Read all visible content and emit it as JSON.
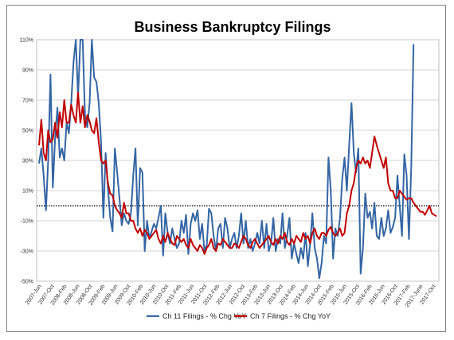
{
  "chart_data": {
    "type": "line",
    "title": "Business Bankruptcy Filings",
    "ylim": [
      -50,
      110
    ],
    "yticks": [
      -50,
      -30,
      -10,
      10,
      30,
      50,
      70,
      90,
      110
    ],
    "ytick_labels": [
      "-50%",
      "-30%",
      "-10%",
      "10%",
      "30%",
      "50%",
      "70%",
      "90%",
      "110%"
    ],
    "x_labels": [
      "2007-Jun",
      "2007-Oct",
      "2008-Feb",
      "2008-Jun",
      "2008-Oct",
      "2009-Feb",
      "2009-Jun",
      "2009-Oct",
      "2010-Feb",
      "2010-Jun",
      "2010-Oct",
      "2011-Feb",
      "2011-Jun",
      "2011-Oct",
      "2012-Feb",
      "2012-Jun",
      "2012-Oct",
      "2013-Feb",
      "2013-Jun",
      "2013-Oct",
      "2014-Feb",
      "2014-Jun",
      "2014-Oct",
      "2015-Feb",
      "2015-Jun",
      "2015-Oct",
      "2016-Feb",
      "2016-Jun",
      "2016-Oct",
      "2017-Feb",
      "2017-June",
      "2017-Oct"
    ],
    "series": [
      {
        "name": "Ch 11 Filings - % Chg YoY",
        "color": "#3465A4",
        "values": [
          28,
          38,
          20,
          -3,
          30,
          87,
          12,
          45,
          65,
          32,
          38,
          30,
          55,
          48,
          68,
          95,
          112,
          72,
          110,
          115,
          60,
          52,
          68,
          112,
          85,
          82,
          68,
          42,
          -8,
          35,
          12,
          -8,
          -17,
          38,
          22,
          5,
          -13,
          -5,
          -10,
          -12,
          -5,
          20,
          38,
          -13,
          25,
          22,
          -30,
          -10,
          -22,
          -17,
          -12,
          -15,
          -8,
          0,
          -33,
          -5,
          -18,
          -25,
          -15,
          -22,
          -28,
          -25,
          -10,
          -18,
          -6,
          -32,
          -12,
          -5,
          -10,
          -3,
          -22,
          -12,
          -30,
          -26,
          -2,
          -5,
          -20,
          -30,
          -15,
          -12,
          -28,
          -8,
          -15,
          -28,
          -22,
          -18,
          -28,
          -20,
          -5,
          -25,
          -10,
          -28,
          -22,
          -30,
          -25,
          -18,
          -25,
          -10,
          -28,
          -12,
          -30,
          -25,
          -8,
          -30,
          -22,
          -25,
          -5,
          -28,
          -20,
          -8,
          -35,
          -25,
          -32,
          -38,
          -28,
          -35,
          -18,
          -40,
          -25,
          -5,
          -28,
          -35,
          -48,
          -38,
          -20,
          -25,
          32,
          10,
          -35,
          -15,
          -20,
          -8,
          18,
          32,
          10,
          40,
          68,
          35,
          22,
          38,
          -45,
          -28,
          8,
          -8,
          -4,
          -15,
          2,
          -20,
          -22,
          -8,
          -20,
          -15,
          -3,
          -18,
          -14,
          -8,
          20,
          0,
          -20,
          34,
          20,
          -22,
          25,
          107
        ]
      },
      {
        "name": "Ch 7 Filings - % Chg YoY",
        "color": "#C00000",
        "values": [
          40,
          57,
          35,
          30,
          50,
          42,
          44,
          55,
          45,
          62,
          52,
          70,
          55,
          55,
          67,
          60,
          55,
          75,
          55,
          66,
          52,
          60,
          56,
          50,
          48,
          58,
          42,
          30,
          28,
          30,
          15,
          8,
          7,
          0,
          -3,
          -5,
          -8,
          2,
          -5,
          -5,
          -10,
          -10,
          -15,
          -18,
          -15,
          -20,
          -16,
          -18,
          -22,
          -20,
          -18,
          -16,
          -22,
          -25,
          -20,
          -24,
          -18,
          -22,
          -25,
          -26,
          -20,
          -22,
          -24,
          -22,
          -26,
          -28,
          -22,
          -26,
          -28,
          -30,
          -26,
          -28,
          -32,
          -28,
          -26,
          -22,
          -28,
          -30,
          -25,
          -26,
          -22,
          -24,
          -26,
          -28,
          -28,
          -25,
          -26,
          -28,
          -24,
          -20,
          -22,
          -26,
          -28,
          -24,
          -22,
          -25,
          -28,
          -26,
          -24,
          -22,
          -20,
          -24,
          -26,
          -22,
          -25,
          -20,
          -22,
          -18,
          -24,
          -26,
          -22,
          -25,
          -20,
          -22,
          -24,
          -18,
          -22,
          -20,
          -25,
          -18,
          -15,
          -20,
          -22,
          -18,
          -18,
          -20,
          -16,
          -14,
          -18,
          -20,
          -18,
          -15,
          -20,
          -18,
          -5,
          0,
          10,
          15,
          25,
          30,
          28,
          32,
          28,
          30,
          25,
          35,
          46,
          40,
          35,
          30,
          25,
          32,
          15,
          10,
          10,
          5,
          5,
          10,
          8,
          6,
          4,
          5,
          5,
          2,
          0,
          -2,
          -4,
          -4,
          -6,
          -3,
          0,
          -5,
          -6,
          -7
        ]
      }
    ],
    "legend_position": "bottom",
    "grid": true
  }
}
